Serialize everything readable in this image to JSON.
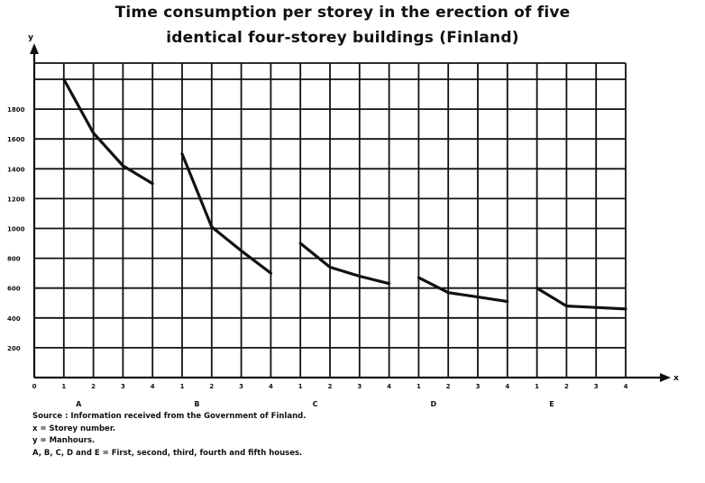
{
  "title_line1": "Time consumption per storey in the erection of five",
  "title_line2": "identical four-storey buildings (Finland)",
  "chart_data": {
    "type": "line",
    "title": "Time consumption per storey in the erection of five identical four-storey buildings (Finland)",
    "xlabel": "x",
    "ylabel": "y",
    "ylim": [
      0,
      2000
    ],
    "yticks": [
      200,
      400,
      600,
      800,
      1000,
      1200,
      1400,
      1600,
      1800
    ],
    "ytick_labels": [
      "200",
      "400",
      "600",
      "800",
      "1000",
      "1200",
      "1400",
      "1600",
      "1800"
    ],
    "x_origin_label": "0",
    "storey_labels": [
      "1",
      "2",
      "3",
      "4"
    ],
    "grid": true,
    "series": [
      {
        "name": "A",
        "x": [
          1,
          2,
          3,
          4
        ],
        "y": [
          2000,
          1640,
          1420,
          1300
        ]
      },
      {
        "name": "B",
        "x": [
          1,
          2,
          3,
          4
        ],
        "y": [
          1500,
          1010,
          850,
          700
        ]
      },
      {
        "name": "C",
        "x": [
          1,
          2,
          3,
          4
        ],
        "y": [
          900,
          740,
          680,
          630
        ]
      },
      {
        "name": "D",
        "x": [
          1,
          2,
          3,
          4
        ],
        "y": [
          670,
          570,
          540,
          510
        ]
      },
      {
        "name": "E",
        "x": [
          1,
          2,
          3,
          4
        ],
        "y": [
          600,
          480,
          470,
          460
        ]
      }
    ]
  },
  "notes": {
    "source": "Source : Information received from the Government of Finland.",
    "x_def": "x = Storey number.",
    "y_def": "y = Manhours.",
    "houses_def": "A, B, C, D and E = First, second, third, fourth and fifth houses."
  },
  "colors": {
    "line": "#111111",
    "grid": "#111111",
    "background": "#ffffff"
  }
}
